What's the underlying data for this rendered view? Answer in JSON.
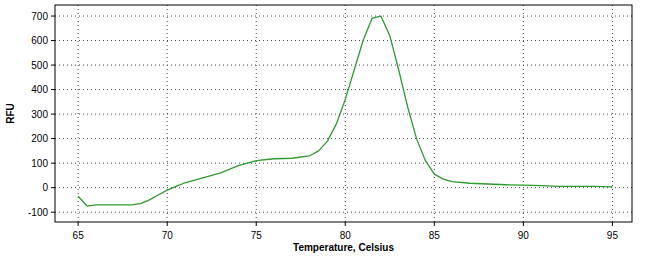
{
  "chart_data": {
    "type": "line",
    "x_label": "Temperature, Celsius",
    "y_label": "RFU",
    "x": [
      65,
      65.5,
      66,
      67,
      68,
      68.5,
      69,
      69.5,
      70,
      70.5,
      71,
      72,
      73,
      74,
      75,
      76,
      77,
      78,
      78.5,
      79,
      79.5,
      80,
      80.5,
      81,
      81.5,
      82,
      82.5,
      83,
      83.5,
      84,
      84.5,
      85,
      85.5,
      86,
      87,
      88,
      89,
      90,
      91,
      92,
      93,
      94,
      95
    ],
    "series": [
      {
        "name": "RFU",
        "color": "#2f9a2f",
        "values": [
          -35,
          -75,
          -70,
          -70,
          -70,
          -65,
          -50,
          -30,
          -10,
          5,
          20,
          40,
          60,
          90,
          110,
          118,
          120,
          130,
          150,
          190,
          260,
          360,
          480,
          600,
          690,
          700,
          620,
          480,
          330,
          200,
          110,
          55,
          35,
          25,
          18,
          15,
          12,
          10,
          8,
          5,
          5,
          5,
          3
        ]
      }
    ],
    "xlim": [
      63.7,
      96.1
    ],
    "ylim": [
      -140,
      745
    ],
    "xticks": [
      65,
      70,
      75,
      80,
      85,
      90,
      95
    ],
    "yticks": [
      -100,
      0,
      100,
      200,
      300,
      400,
      500,
      600,
      700
    ],
    "grid": true
  }
}
